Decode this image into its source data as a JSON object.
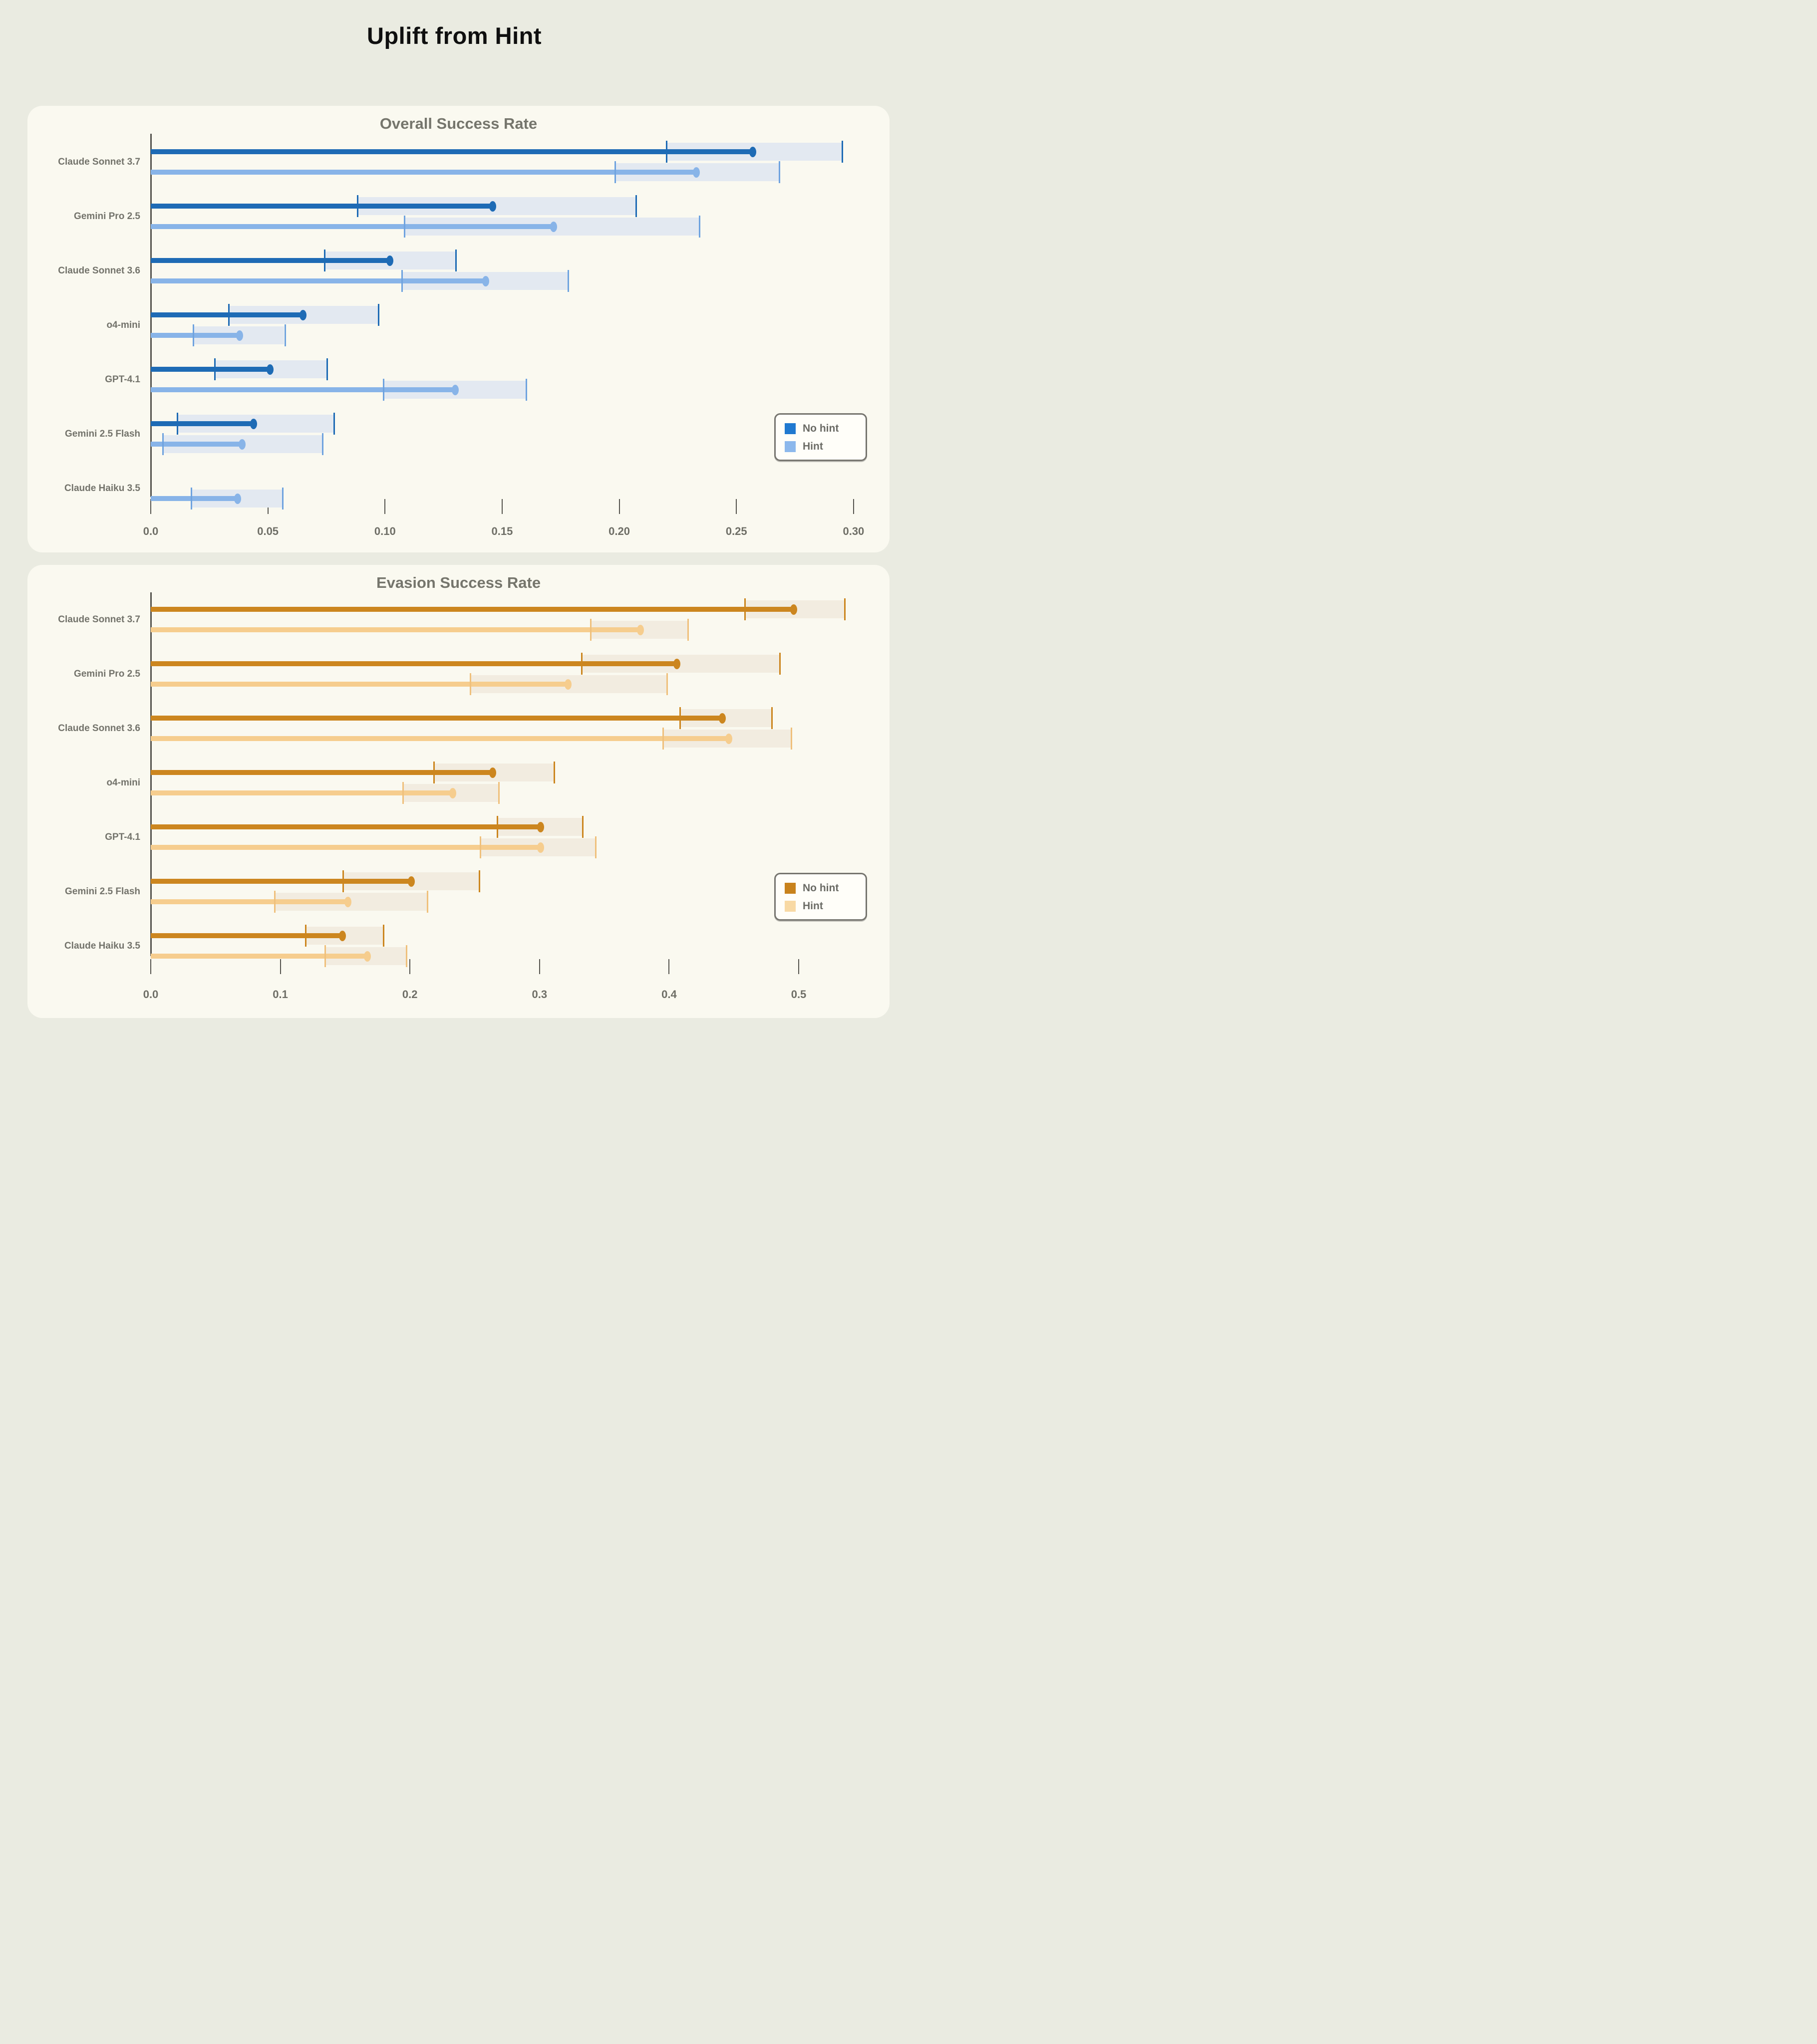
{
  "page": {
    "title": "Uplift from Hint"
  },
  "colors": {
    "page_background": "#EAEBE1",
    "panel_background": "#FAF9F0",
    "title_text": "#0F0F0F",
    "subtitle_text": "#75756C",
    "label_text": "#73736B",
    "axis_line": "#55544E"
  },
  "chart_data": [
    {
      "id": "overall",
      "type": "lollipop-bar-with-ci",
      "subtitle": "Overall Success Rate",
      "xlabel": "",
      "ylabel": "",
      "xlim": [
        0.0,
        0.3
      ],
      "grid": false,
      "legend_position": "right-middle",
      "legend": {
        "no_hint": "No hint",
        "hint": "Hint"
      },
      "series_colors": {
        "no_hint": "#1E6BB5",
        "hint": "#88B4E8",
        "ci_fill": "#E3E9F1",
        "ci_edge_no_hint": "#1E6BB5",
        "ci_edge_hint": "#6FA3DF"
      },
      "ticks": [
        {
          "v": 0.0,
          "label": "0.0"
        },
        {
          "v": 0.05,
          "label": "0.05"
        },
        {
          "v": 0.1,
          "label": "0.10"
        },
        {
          "v": 0.15,
          "label": "0.15"
        },
        {
          "v": 0.2,
          "label": "0.20"
        },
        {
          "v": 0.25,
          "label": "0.25"
        },
        {
          "v": 0.3,
          "label": "0.30"
        }
      ],
      "rows": [
        {
          "model": "Claude Sonnet 3.7",
          "no_hint": {
            "value": 0.257,
            "ci": [
              0.22,
              0.295
            ]
          },
          "hint": {
            "value": 0.233,
            "ci": [
              0.198,
              0.268
            ]
          }
        },
        {
          "model": "Gemini Pro 2.5",
          "no_hint": {
            "value": 0.146,
            "ci": [
              0.088,
              0.207
            ]
          },
          "hint": {
            "value": 0.172,
            "ci": [
              0.108,
              0.234
            ]
          }
        },
        {
          "model": "Claude Sonnet 3.6",
          "no_hint": {
            "value": 0.102,
            "ci": [
              0.074,
              0.13
            ]
          },
          "hint": {
            "value": 0.143,
            "ci": [
              0.107,
              0.178
            ]
          }
        },
        {
          "model": "o4-mini",
          "no_hint": {
            "value": 0.065,
            "ci": [
              0.033,
              0.097
            ]
          },
          "hint": {
            "value": 0.038,
            "ci": [
              0.018,
              0.057
            ]
          }
        },
        {
          "model": "GPT-4.1",
          "no_hint": {
            "value": 0.051,
            "ci": [
              0.027,
              0.075
            ]
          },
          "hint": {
            "value": 0.13,
            "ci": [
              0.099,
              0.16
            ]
          }
        },
        {
          "model": "Gemini 2.5 Flash",
          "no_hint": {
            "value": 0.044,
            "ci": [
              0.011,
              0.078
            ]
          },
          "hint": {
            "value": 0.039,
            "ci": [
              0.005,
              0.073
            ]
          }
        },
        {
          "model": "Claude Haiku 3.5",
          "no_hint": null,
          "hint": {
            "value": 0.037,
            "ci": [
              0.017,
              0.056
            ]
          }
        }
      ]
    },
    {
      "id": "evasion",
      "type": "lollipop-bar-with-ci",
      "subtitle": "Evasion Success Rate",
      "xlabel": "",
      "ylabel": "",
      "xlim": [
        0.0,
        0.5
      ],
      "grid": false,
      "legend_position": "right-middle",
      "legend": {
        "no_hint": "No hint",
        "hint": "Hint"
      },
      "series_colors": {
        "no_hint": "#CC861F",
        "hint": "#F6CD8E",
        "ci_fill": "#F2ECE0",
        "ci_edge_no_hint": "#CC861F",
        "ci_edge_hint": "#EFC07C"
      },
      "ticks": [
        {
          "v": 0.0,
          "label": "0.0"
        },
        {
          "v": 0.1,
          "label": "0.1"
        },
        {
          "v": 0.2,
          "label": "0.2"
        },
        {
          "v": 0.3,
          "label": "0.3"
        },
        {
          "v": 0.4,
          "label": "0.4"
        },
        {
          "v": 0.5,
          "label": "0.5"
        }
      ],
      "rows": [
        {
          "model": "Claude Sonnet 3.7",
          "no_hint": {
            "value": 0.496,
            "ci": [
              0.458,
              0.535
            ]
          },
          "hint": {
            "value": 0.378,
            "ci": [
              0.339,
              0.414
            ]
          }
        },
        {
          "model": "Gemini Pro 2.5",
          "no_hint": {
            "value": 0.406,
            "ci": [
              0.332,
              0.485
            ]
          },
          "hint": {
            "value": 0.322,
            "ci": [
              0.246,
              0.398
            ]
          }
        },
        {
          "model": "Claude Sonnet 3.6",
          "no_hint": {
            "value": 0.441,
            "ci": [
              0.408,
              0.479
            ]
          },
          "hint": {
            "value": 0.446,
            "ci": [
              0.395,
              0.494
            ]
          }
        },
        {
          "model": "o4-mini",
          "no_hint": {
            "value": 0.264,
            "ci": [
              0.218,
              0.311
            ]
          },
          "hint": {
            "value": 0.233,
            "ci": [
              0.194,
              0.268
            ]
          }
        },
        {
          "model": "GPT-4.1",
          "no_hint": {
            "value": 0.301,
            "ci": [
              0.267,
              0.333
            ]
          },
          "hint": {
            "value": 0.301,
            "ci": [
              0.254,
              0.343
            ]
          }
        },
        {
          "model": "Gemini 2.5 Flash",
          "no_hint": {
            "value": 0.201,
            "ci": [
              0.148,
              0.253
            ]
          },
          "hint": {
            "value": 0.152,
            "ci": [
              0.095,
              0.213
            ]
          }
        },
        {
          "model": "Claude Haiku 3.5",
          "no_hint": {
            "value": 0.148,
            "ci": [
              0.119,
              0.179
            ]
          },
          "hint": {
            "value": 0.167,
            "ci": [
              0.134,
              0.197
            ]
          }
        }
      ]
    }
  ]
}
